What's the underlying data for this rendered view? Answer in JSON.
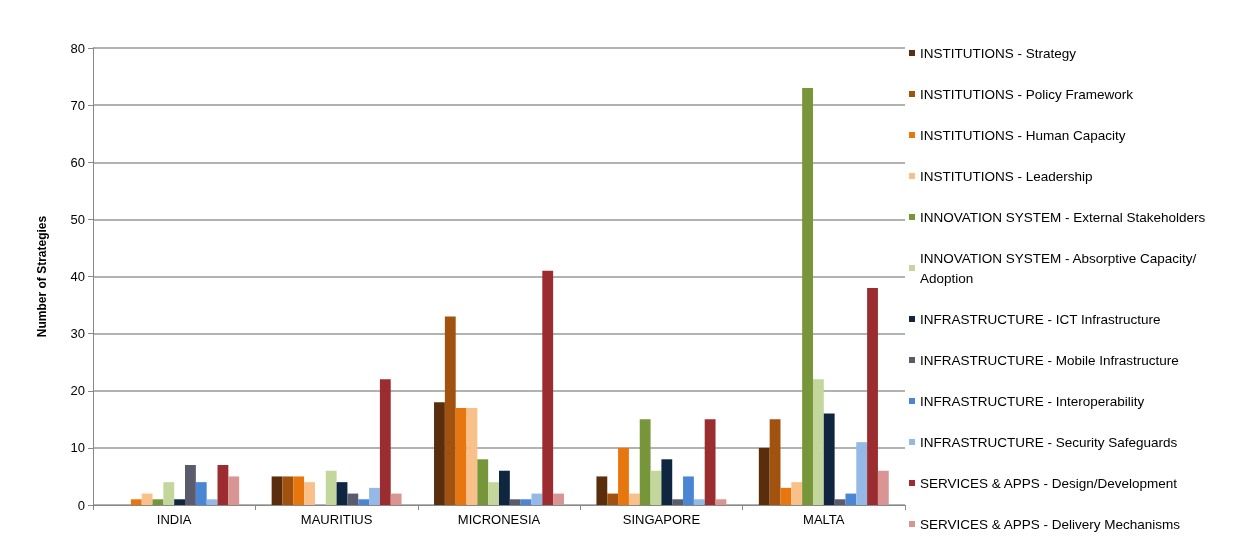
{
  "chart_data": {
    "type": "bar",
    "ylabel": "Number of Strategies",
    "categories": [
      "INDIA",
      "MAURITIUS",
      "MICRONESIA",
      "SINGAPORE",
      "MALTA"
    ],
    "ylim": [
      0,
      80
    ],
    "yticks": [
      0,
      10,
      20,
      30,
      40,
      50,
      60,
      70,
      80
    ],
    "grid": "y",
    "legend": "right",
    "series": [
      {
        "name": "INSTITUTIONS - Strategy",
        "color": "#5a2d0c",
        "values": [
          0,
          5,
          18,
          5,
          10
        ]
      },
      {
        "name": "INSTITUTIONS - Policy Framework",
        "color": "#a0520e",
        "values": [
          0,
          5,
          33,
          2,
          15
        ]
      },
      {
        "name": "INSTITUTIONS - Human Capacity",
        "color": "#e8760f",
        "values": [
          1,
          5,
          17,
          10,
          3
        ]
      },
      {
        "name": "INSTITUTIONS - Leadership",
        "color": "#f9c08a",
        "values": [
          2,
          4,
          17,
          2,
          4
        ]
      },
      {
        "name": "INNOVATION SYSTEM - External Stakeholders",
        "color": "#77963a",
        "values": [
          1,
          0,
          8,
          15,
          73
        ]
      },
      {
        "name": "INNOVATION SYSTEM - Absorptive Capacity/Adoption",
        "color": "#c3d69b",
        "values": [
          4,
          6,
          4,
          6,
          22
        ]
      },
      {
        "name": "INFRASTRUCTURE - ICT Infrastructure",
        "color": "#10253f",
        "values": [
          1,
          4,
          6,
          8,
          16
        ]
      },
      {
        "name": "INFRASTRUCTURE - Mobile Infrastructure",
        "color": "#5b5b6e",
        "values": [
          7,
          2,
          1,
          1,
          1
        ]
      },
      {
        "name": "INFRASTRUCTURE - Interoperability",
        "color": "#4a86d4",
        "values": [
          4,
          1,
          1,
          5,
          2
        ]
      },
      {
        "name": "INFRASTRUCTURE - Security Safeguards",
        "color": "#95b9e6",
        "values": [
          1,
          3,
          2,
          1,
          11
        ]
      },
      {
        "name": "SERVICES & APPS - Design/Development",
        "color": "#9b2d30",
        "values": [
          7,
          22,
          41,
          15,
          38
        ]
      },
      {
        "name": "SERVICES & APPS - Delivery Mechanisms",
        "color": "#d99594",
        "values": [
          5,
          2,
          2,
          1,
          6
        ]
      }
    ]
  }
}
